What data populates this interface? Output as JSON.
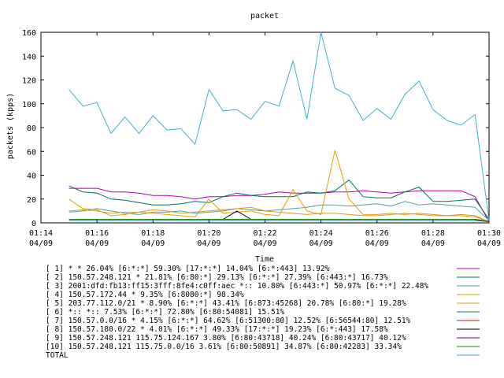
{
  "chart_data": {
    "type": "line",
    "title": "packet",
    "xlabel": "Time",
    "ylabel": "packets (kpps)",
    "ylim": [
      0,
      160
    ],
    "yticks": [
      0,
      20,
      40,
      60,
      80,
      100,
      120,
      140,
      160
    ],
    "xlim": [
      "04/09 01:14",
      "04/09 01:30"
    ],
    "xticks": [
      {
        "time": "01:14",
        "date": "04/09"
      },
      {
        "time": "01:16",
        "date": "04/09"
      },
      {
        "time": "01:18",
        "date": "04/09"
      },
      {
        "time": "01:20",
        "date": "04/09"
      },
      {
        "time": "01:22",
        "date": "04/09"
      },
      {
        "time": "01:24",
        "date": "04/09"
      },
      {
        "time": "01:26",
        "date": "04/09"
      },
      {
        "time": "01:28",
        "date": "04/09"
      },
      {
        "time": "01:30",
        "date": "04/09"
      }
    ],
    "x": [
      "01:15:00",
      "01:15:30",
      "01:16:00",
      "01:16:30",
      "01:17:00",
      "01:17:30",
      "01:18:00",
      "01:18:30",
      "01:19:00",
      "01:19:30",
      "01:20:00",
      "01:20:30",
      "01:21:00",
      "01:21:30",
      "01:22:00",
      "01:22:30",
      "01:23:00",
      "01:23:30",
      "01:24:00",
      "01:24:30",
      "01:25:00",
      "01:25:30",
      "01:26:00",
      "01:26:30",
      "01:27:00",
      "01:27:30",
      "01:28:00",
      "01:28:30",
      "01:29:00",
      "01:29:30",
      "01:30:00"
    ],
    "legend_position": "bottom",
    "series": [
      {
        "name": "[ 1] * * 26.04%  [6:*:*] 59.30% [17:*:*] 14.04% [6:*:443] 13.92%",
        "color": "#b000b0",
        "values": [
          29,
          29,
          29,
          26,
          26,
          25,
          23,
          23,
          22,
          20,
          22,
          22,
          23,
          23,
          24,
          26,
          25,
          25,
          25,
          26,
          26,
          27,
          26,
          25,
          26,
          27,
          27,
          27,
          27,
          22,
          1
        ]
      },
      {
        "name": "[ 2] 150.57.248.121 * 21.81%  [6:80:*] 29.13% [6:*:*] 27.39% [6:443:*] 16.73%",
        "color": "#007060",
        "values": [
          31,
          26,
          25,
          20,
          19,
          17,
          15,
          15,
          16,
          18,
          17,
          22,
          25,
          23,
          22,
          22,
          22,
          26,
          25,
          27,
          36,
          22,
          21,
          21,
          26,
          30,
          18,
          18,
          19,
          20,
          3
        ]
      },
      {
        "name": "[ 3] 2001:dfd:fb13:ff15:3fff:8fe4:c0ff:aec *:: 10.80%  [6:443:*] 50.97% [6:*:*] 22.48%",
        "color": "#50a0a0",
        "values": [
          9,
          10,
          12,
          10,
          8,
          7,
          9,
          9,
          10,
          8,
          9,
          10,
          12,
          11,
          10,
          11,
          12,
          13,
          15,
          15,
          14,
          15,
          16,
          14,
          18,
          15,
          16,
          15,
          14,
          13,
          2
        ]
      },
      {
        "name": "[ 4] 150.57.172.44 * 9.35%  [6:8080:*] 98.34%",
        "color": "#e0a000",
        "values": [
          20,
          12,
          11,
          6,
          7,
          9,
          8,
          7,
          6,
          5,
          20,
          8,
          9,
          10,
          7,
          6,
          28,
          10,
          7,
          61,
          20,
          7,
          7,
          8,
          7,
          8,
          7,
          6,
          6,
          5,
          1
        ]
      },
      {
        "name": "[ 5] 203.77.112.0/21 * 8.90%  [6:*:*] 43.41% [6:873:45268] 20.78% [6:80:*] 19.28%",
        "color": "#d0a020",
        "values": [
          10,
          11,
          10,
          8,
          9,
          9,
          11,
          10,
          8,
          9,
          10,
          11,
          12,
          13,
          10,
          9,
          8,
          7,
          8,
          8,
          7,
          6,
          6,
          7,
          8,
          7,
          6,
          6,
          7,
          6,
          1
        ]
      },
      {
        "name": "[ 6] *:: *:: 7.53%  [6:*:*] 72.80% [6:80:54081] 15.51%",
        "color": "#2060b0",
        "values": [
          2,
          2,
          2,
          2,
          2,
          2,
          2,
          2,
          2,
          2,
          2,
          2,
          2,
          2,
          2,
          2,
          2,
          2,
          2,
          2,
          2,
          2,
          2,
          2,
          2,
          2,
          2,
          2,
          2,
          2,
          1
        ]
      },
      {
        "name": "[ 7] 150.57.0.0/16 * 4.15%  [6:*:*] 64.62% [6:51300:80] 12.52% [6:56544:80] 12.51%",
        "color": "#c02020",
        "values": [
          3,
          3,
          3,
          3,
          3,
          3,
          3,
          3,
          3,
          3,
          3,
          3,
          3,
          3,
          3,
          3,
          3,
          3,
          3,
          3,
          3,
          3,
          3,
          3,
          3,
          3,
          3,
          3,
          3,
          3,
          1
        ]
      },
      {
        "name": "[ 8] 150.57.180.0/22 * 4.01%  [6:*:*] 49.33% [17:*:*] 19.23% [6:*:443] 17.58%",
        "color": "#000000",
        "values": [
          3,
          3,
          3,
          3,
          3,
          3,
          3,
          3,
          3,
          3,
          3,
          3,
          10,
          3,
          3,
          3,
          3,
          3,
          3,
          3,
          3,
          3,
          3,
          3,
          3,
          3,
          3,
          3,
          3,
          3,
          1
        ]
      },
      {
        "name": "[ 9] 150.57.248.121 115.75.124.167 3.80%  [6:80:43718] 40.24% [6:80:43717] 40.12%",
        "color": "#6000a0",
        "values": [
          3,
          3,
          3,
          3,
          3,
          3,
          3,
          3,
          3,
          3,
          3,
          3,
          3,
          3,
          3,
          3,
          3,
          3,
          3,
          3,
          3,
          3,
          3,
          3,
          3,
          3,
          3,
          3,
          3,
          3,
          1
        ]
      },
      {
        "name": "[10] 150.57.248.121 115.75.0.0/16 3.61%  [6:80:50891] 34.87% [6:80:42283] 33.34%",
        "color": "#208020",
        "values": [
          3,
          3,
          3,
          3,
          3,
          3,
          3,
          3,
          3,
          3,
          3,
          3,
          3,
          3,
          3,
          3,
          3,
          3,
          3,
          3,
          3,
          3,
          3,
          3,
          3,
          3,
          3,
          3,
          3,
          3,
          1
        ]
      },
      {
        "name": "TOTAL",
        "color": "#40b0d0",
        "values": [
          112,
          98,
          101,
          75,
          89,
          75,
          90,
          78,
          79,
          66,
          112,
          94,
          95,
          87,
          102,
          98,
          136,
          87,
          160,
          113,
          107,
          86,
          96,
          87,
          108,
          119,
          95,
          86,
          82,
          91,
          2
        ]
      }
    ]
  }
}
